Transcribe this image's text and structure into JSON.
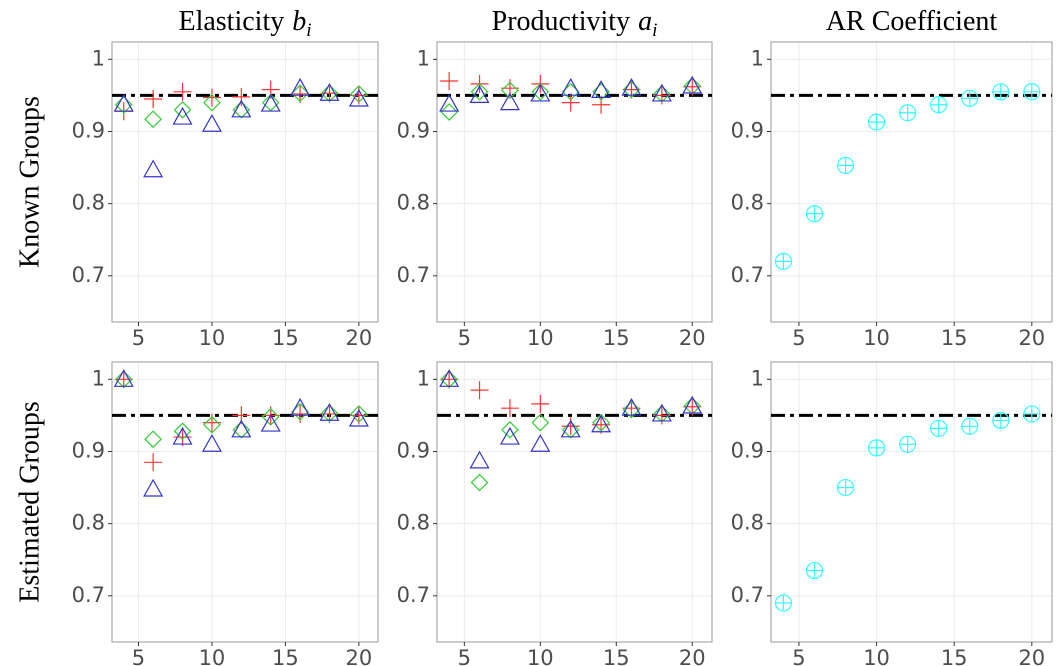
{
  "chart_data": [
    {
      "type": "scatter",
      "title": "Elasticity",
      "title_symbol": "b",
      "title_subscript": "i",
      "ylabel": "Known Groups",
      "x": [
        4,
        6,
        8,
        10,
        12,
        14,
        16,
        18,
        20
      ],
      "xlim": [
        3.2,
        21.3
      ],
      "xticks": [
        5,
        10,
        15,
        20
      ],
      "ylim": [
        0.636,
        1.024
      ],
      "yticks": [
        0.7,
        0.8,
        0.9,
        1
      ],
      "grid": true,
      "hline": 0.95,
      "series": [
        {
          "color": "#ff3333",
          "marker": "plus",
          "values": [
            0.928,
            0.945,
            0.955,
            0.947,
            0.948,
            0.958,
            0.952,
            0.953,
            0.95
          ]
        },
        {
          "color": "#33cc33",
          "marker": "diamond",
          "values": [
            0.937,
            0.917,
            0.93,
            0.94,
            0.93,
            0.94,
            0.953,
            0.953,
            0.952
          ]
        },
        {
          "color": "#3333cc",
          "marker": "triangle",
          "values": [
            0.938,
            0.847,
            0.92,
            0.91,
            0.93,
            0.938,
            0.96,
            0.953,
            0.945
          ]
        }
      ]
    },
    {
      "type": "scatter",
      "title": "Productivity",
      "title_symbol": "a",
      "title_subscript": "i",
      "x": [
        4,
        6,
        8,
        10,
        12,
        14,
        16,
        18,
        20
      ],
      "xlim": [
        3.2,
        21.3
      ],
      "xticks": [
        5,
        10,
        15,
        20
      ],
      "ylim": [
        0.636,
        1.024
      ],
      "yticks": [
        0.7,
        0.8,
        0.9,
        1
      ],
      "grid": true,
      "hline": 0.95,
      "series": [
        {
          "color": "#ff3333",
          "marker": "plus",
          "values": [
            0.97,
            0.966,
            0.96,
            0.966,
            0.94,
            0.937,
            0.958,
            0.95,
            0.962
          ]
        },
        {
          "color": "#33cc33",
          "marker": "diamond",
          "values": [
            0.927,
            0.955,
            0.957,
            0.955,
            0.955,
            0.955,
            0.958,
            0.952,
            0.963
          ]
        },
        {
          "color": "#3333cc",
          "marker": "triangle",
          "values": [
            0.938,
            0.95,
            0.94,
            0.952,
            0.96,
            0.957,
            0.96,
            0.952,
            0.963
          ]
        }
      ]
    },
    {
      "type": "scatter",
      "title": "AR Coefficient",
      "x": [
        4,
        6,
        8,
        10,
        12,
        14,
        16,
        18,
        20
      ],
      "xlim": [
        3.2,
        21.3
      ],
      "xticks": [
        5,
        10,
        15,
        20
      ],
      "ylim": [
        0.636,
        1.024
      ],
      "yticks": [
        0.7,
        0.8,
        0.9,
        1
      ],
      "grid": true,
      "hline": 0.95,
      "series": [
        {
          "color": "#33ffff",
          "marker": "circle-plus",
          "values": [
            0.72,
            0.786,
            0.853,
            0.913,
            0.926,
            0.937,
            0.946,
            0.955,
            0.955
          ]
        }
      ]
    },
    {
      "type": "scatter",
      "ylabel": "Estimated Groups",
      "x": [
        4,
        6,
        8,
        10,
        12,
        14,
        16,
        18,
        20
      ],
      "xlim": [
        3.2,
        21.3
      ],
      "xticks": [
        5,
        10,
        15,
        20
      ],
      "ylim": [
        0.636,
        1.024
      ],
      "yticks": [
        0.7,
        0.8,
        0.9,
        1
      ],
      "grid": true,
      "hline": 0.95,
      "series": [
        {
          "color": "#ff3333",
          "marker": "plus",
          "values": [
            1.0,
            0.885,
            0.92,
            0.94,
            0.95,
            0.95,
            0.952,
            0.952,
            0.95
          ]
        },
        {
          "color": "#33cc33",
          "marker": "diamond",
          "values": [
            1.0,
            0.917,
            0.928,
            0.937,
            0.93,
            0.948,
            0.955,
            0.953,
            0.952
          ]
        },
        {
          "color": "#3333cc",
          "marker": "triangle",
          "values": [
            1.0,
            0.848,
            0.92,
            0.91,
            0.93,
            0.938,
            0.96,
            0.953,
            0.945
          ]
        }
      ]
    },
    {
      "type": "scatter",
      "x": [
        4,
        6,
        8,
        10,
        12,
        14,
        16,
        18,
        20
      ],
      "xlim": [
        3.2,
        21.3
      ],
      "xticks": [
        5,
        10,
        15,
        20
      ],
      "ylim": [
        0.636,
        1.024
      ],
      "yticks": [
        0.7,
        0.8,
        0.9,
        1
      ],
      "grid": true,
      "hline": 0.95,
      "series": [
        {
          "color": "#ff3333",
          "marker": "plus",
          "values": [
            1.0,
            0.985,
            0.96,
            0.966,
            0.935,
            0.937,
            0.96,
            0.95,
            0.962
          ]
        },
        {
          "color": "#33cc33",
          "marker": "diamond",
          "values": [
            1.0,
            0.857,
            0.93,
            0.94,
            0.93,
            0.94,
            0.958,
            0.952,
            0.963
          ]
        },
        {
          "color": "#3333cc",
          "marker": "triangle",
          "values": [
            1.0,
            0.887,
            0.92,
            0.91,
            0.93,
            0.937,
            0.96,
            0.952,
            0.963
          ]
        }
      ]
    },
    {
      "type": "scatter",
      "x": [
        4,
        6,
        8,
        10,
        12,
        14,
        16,
        18,
        20
      ],
      "xlim": [
        3.2,
        21.3
      ],
      "xticks": [
        5,
        10,
        15,
        20
      ],
      "ylim": [
        0.636,
        1.024
      ],
      "yticks": [
        0.7,
        0.8,
        0.9,
        1
      ],
      "grid": true,
      "hline": 0.95,
      "series": [
        {
          "color": "#33ffff",
          "marker": "circle-plus",
          "values": [
            0.69,
            0.735,
            0.85,
            0.905,
            0.91,
            0.932,
            0.935,
            0.943,
            0.952
          ]
        }
      ]
    }
  ]
}
